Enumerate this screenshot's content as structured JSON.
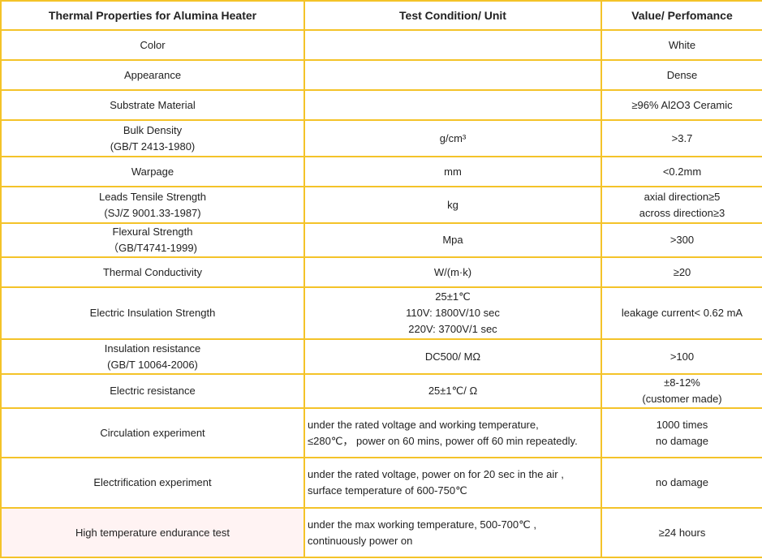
{
  "table": {
    "headers": [
      "Thermal Properties for Alumina Heater",
      "Test Condition/ Unit",
      "Value/ Perfomance"
    ],
    "rows": [
      {
        "property": [
          "Color"
        ],
        "condition": [],
        "value": [
          "White"
        ]
      },
      {
        "property": [
          "Appearance"
        ],
        "condition": [],
        "value": [
          "Dense"
        ]
      },
      {
        "property": [
          "Substrate Material"
        ],
        "condition": [],
        "value": [
          "≥96% Al2O3 Ceramic"
        ]
      },
      {
        "property": [
          "Bulk Density",
          "(GB/T 2413-1980)"
        ],
        "condition": [
          "g/cm³"
        ],
        "value": [
          ">3.7"
        ]
      },
      {
        "property": [
          "Warpage"
        ],
        "condition": [
          "mm"
        ],
        "value": [
          "<0.2mm"
        ]
      },
      {
        "property": [
          "Leads Tensile Strength",
          "(SJ/Z 9001.33-1987)"
        ],
        "condition": [
          "kg"
        ],
        "value": [
          "axial direction≥5",
          "across direction≥3"
        ]
      },
      {
        "property": [
          "Flexural Strength",
          "（GB/T4741-1999)"
        ],
        "condition": [
          "Mpa"
        ],
        "value": [
          ">300"
        ]
      },
      {
        "property": [
          "Thermal Conductivity"
        ],
        "condition": [
          "W/(m·k)"
        ],
        "value": [
          "≥20"
        ]
      },
      {
        "property": [
          "Electric Insulation Strength"
        ],
        "condition": [
          "25±1℃",
          "110V: 1800V/10 sec",
          "220V: 3700V/1 sec"
        ],
        "value": [
          "leakage current< 0.62 mA"
        ]
      },
      {
        "property": [
          "Insulation resistance",
          "(GB/T 10064-2006)"
        ],
        "condition": [
          "DC500/ MΩ"
        ],
        "value": [
          ">100"
        ]
      },
      {
        "property": [
          "Electric resistance"
        ],
        "condition": [
          "25±1℃/ Ω"
        ],
        "value": [
          "±8-12%",
          "(customer made)"
        ]
      },
      {
        "property": [
          "Circulation experiment"
        ],
        "condition": [
          "under the rated voltage and working temperature,",
          "≤280℃， power on 60 mins, power off 60 min repeatedly."
        ],
        "value": [
          "1000 times",
          "no damage"
        ]
      },
      {
        "property": [
          "Electrification experiment"
        ],
        "condition": [
          "under the rated voltage, power on for 20 sec in the air ,",
          "surface temperature of 600-750℃"
        ],
        "value": [
          "no damage"
        ]
      },
      {
        "property": [
          "High temperature endurance test"
        ],
        "condition": [
          "under the max working temperature, 500-700℃ ,",
          "continuously power on"
        ],
        "value": [
          "≥24 hours"
        ]
      }
    ]
  }
}
